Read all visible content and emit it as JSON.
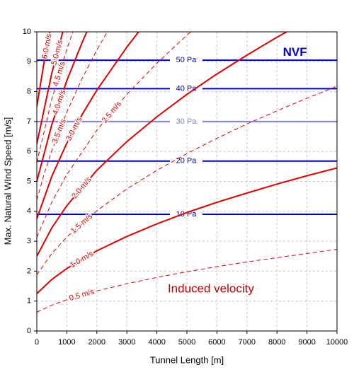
{
  "chart_data": {
    "type": "line",
    "x_label": "Tunnel Length [m]",
    "y_label": "Max. Natural WInd Speed [m/s]",
    "xlim": [
      0,
      10000
    ],
    "xticks": [
      0,
      1000,
      2000,
      3000,
      4000,
      5000,
      6000,
      7000,
      8000,
      9000,
      10000
    ],
    "ylim": [
      0,
      10
    ],
    "yticks": [
      0,
      1,
      2,
      3,
      4,
      5,
      6,
      7,
      8,
      9,
      10
    ],
    "grid": true,
    "color": "#e00000",
    "series": [
      {
        "name": "0.5 m/s",
        "dashed": true,
        "x": [
          0,
          500,
          1000,
          2000,
          3000,
          4000,
          5000,
          6000,
          7000,
          8000,
          9000,
          10000
        ],
        "values": [
          0.63,
          0.86,
          1.05,
          1.34,
          1.58,
          1.79,
          1.98,
          2.15,
          2.31,
          2.45,
          2.59,
          2.73
        ]
      },
      {
        "name": "1.0 m/s",
        "dashed": false,
        "x": [
          0,
          500,
          1000,
          2000,
          3000,
          4000,
          5000,
          6000,
          7000,
          8000,
          9000,
          10000
        ],
        "values": [
          1.25,
          1.72,
          2.09,
          2.68,
          3.16,
          3.58,
          3.96,
          4.3,
          4.61,
          4.91,
          5.19,
          5.45
        ]
      },
      {
        "name": "1.5 m/s",
        "dashed": true,
        "x": [
          0,
          500,
          1000,
          2000,
          3000,
          4000,
          5000,
          6000,
          7000,
          8000,
          9000,
          10000
        ],
        "values": [
          1.88,
          2.59,
          3.14,
          4.02,
          4.75,
          5.37,
          5.93,
          6.44,
          6.92,
          7.36,
          7.78,
          8.18
        ]
      },
      {
        "name": "2.0 m/s",
        "dashed": false,
        "x": [
          0,
          500,
          1000,
          2000,
          3000,
          4000,
          5000,
          6000,
          7000,
          8000,
          8325
        ],
        "values": [
          2.5,
          3.45,
          4.19,
          5.37,
          6.33,
          7.16,
          7.91,
          8.59,
          9.22,
          9.82,
          10
        ]
      },
      {
        "name": "2.5 m/s",
        "dashed": true,
        "x": [
          0,
          500,
          1000,
          2000,
          3000,
          4000,
          5000,
          5128
        ],
        "values": [
          3.13,
          4.31,
          5.23,
          6.71,
          7.91,
          8.95,
          9.89,
          10
        ]
      },
      {
        "name": "3.0 m/s",
        "dashed": false,
        "x": [
          0,
          500,
          1000,
          1500,
          2000,
          3000,
          3392
        ],
        "values": [
          3.75,
          5.17,
          6.28,
          7.22,
          8.05,
          9.49,
          10
        ]
      },
      {
        "name": "3.5 m/s",
        "dashed": true,
        "x": [
          0,
          250,
          500,
          1000,
          1500,
          2000,
          2344
        ],
        "values": [
          4.38,
          5.27,
          6.03,
          7.32,
          8.42,
          9.39,
          10
        ]
      },
      {
        "name": "4.0 m/s",
        "dashed": false,
        "x": [
          0,
          500,
          1000,
          1500,
          1665
        ],
        "values": [
          5.0,
          6.9,
          8.37,
          9.62,
          10
        ]
      },
      {
        "name": "4.5 m/s",
        "dashed": true,
        "x": [
          0,
          500,
          1000,
          1199
        ],
        "values": [
          5.63,
          7.76,
          9.42,
          10
        ]
      },
      {
        "name": "5.0 m/s",
        "dashed": false,
        "x": [
          0,
          500,
          866
        ],
        "values": [
          6.25,
          8.62,
          10
        ]
      },
      {
        "name": "6.0 m/s",
        "dashed": false,
        "x": [
          0,
          250,
          432
        ],
        "values": [
          7.5,
          9.03,
          10
        ]
      }
    ],
    "pressure_lines": [
      {
        "label": "10 Pa",
        "value": 3.9,
        "color": "#0000cc"
      },
      {
        "label": "20 Pa",
        "value": 5.68,
        "color": "#0000cc"
      },
      {
        "label": "30 Pa",
        "value": 7.0,
        "color": "#8080e0"
      },
      {
        "label": "40 Pa",
        "value": 8.1,
        "color": "#0000cc"
      },
      {
        "label": "50 Pa",
        "value": 9.05,
        "color": "#0000cc"
      }
    ],
    "annotations": [
      {
        "text": "NVF",
        "x": 8600,
        "y": 9.3,
        "color": "#0000cc"
      },
      {
        "text": "Induced velocity",
        "x": 5800,
        "y": 1.4,
        "color": "#c00000"
      }
    ]
  }
}
